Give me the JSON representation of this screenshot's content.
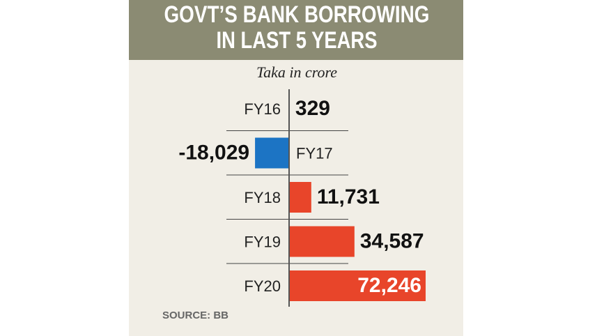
{
  "chart_data": {
    "type": "hbar",
    "title": [
      "GOVT’S BANK BORROWING",
      "IN LAST 5 YEARS"
    ],
    "subtitle": "Taka in crore",
    "categories": [
      "FY16",
      "FY17",
      "FY18",
      "FY19",
      "FY20"
    ],
    "values": [
      329,
      -18029,
      11731,
      34587,
      72246
    ],
    "value_labels": [
      "329",
      "-18,029",
      "11,731",
      "34,587",
      "72,246"
    ],
    "color": "#e8452a",
    "negative_color": "#1c74c4",
    "source": "SOURCE: BB"
  }
}
